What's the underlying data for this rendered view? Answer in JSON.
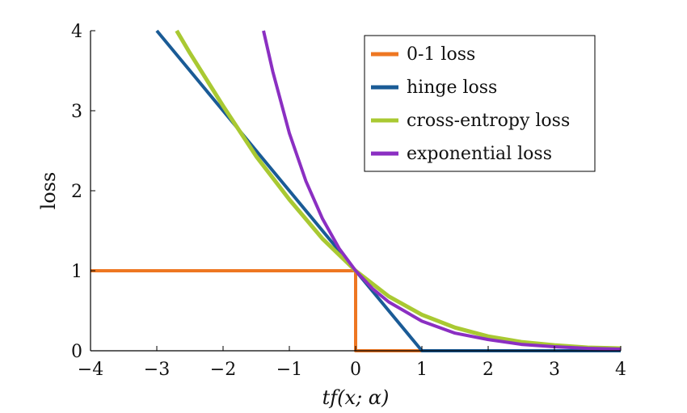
{
  "chart_data": {
    "type": "line",
    "title": "",
    "xlabel": "tf(x; α)",
    "ylabel": "loss",
    "xlim": [
      -4,
      4
    ],
    "ylim": [
      0,
      4
    ],
    "x_ticks": [
      -4,
      -3,
      -2,
      -1,
      0,
      1,
      2,
      3,
      4
    ],
    "x_tick_labels": [
      "−4",
      "−3",
      "−2",
      "−1",
      "0",
      "1",
      "2",
      "3",
      "4"
    ],
    "y_ticks": [
      0,
      1,
      2,
      3,
      4
    ],
    "y_tick_labels": [
      "0",
      "1",
      "2",
      "3",
      "4"
    ],
    "grid": false,
    "legend_position": "top-right",
    "series": [
      {
        "name": "0-1 loss",
        "color": "#ee7722",
        "x": [
          -4,
          0,
          0,
          1
        ],
        "y": [
          1,
          1,
          0,
          0
        ]
      },
      {
        "name": "hinge loss",
        "color": "#1a5b96",
        "x": [
          -3,
          -2,
          -1,
          0,
          1,
          2,
          3,
          4
        ],
        "y": [
          4,
          3,
          2,
          1,
          0,
          0,
          0,
          0
        ]
      },
      {
        "name": "cross-entropy loss",
        "color": "#a9c932",
        "x": [
          -2.7,
          -2.5,
          -2,
          -1.5,
          -1,
          -0.5,
          0,
          0.5,
          1,
          1.5,
          2,
          2.5,
          3,
          3.5,
          4
        ],
        "y": [
          4.0,
          3.72,
          3.06,
          2.43,
          1.89,
          1.4,
          1.0,
          0.68,
          0.45,
          0.29,
          0.18,
          0.11,
          0.07,
          0.04,
          0.03
        ],
        "width": 5
      },
      {
        "name": "exponential loss",
        "color": "#8b2fc2",
        "x": [
          -1.39,
          -1.25,
          -1,
          -0.75,
          -0.5,
          -0.25,
          0,
          0.25,
          0.5,
          1,
          1.5,
          2,
          2.5,
          3,
          3.5,
          4
        ],
        "y": [
          4.0,
          3.49,
          2.72,
          2.12,
          1.65,
          1.28,
          1.0,
          0.78,
          0.61,
          0.37,
          0.22,
          0.14,
          0.08,
          0.05,
          0.03,
          0.02
        ]
      }
    ]
  }
}
